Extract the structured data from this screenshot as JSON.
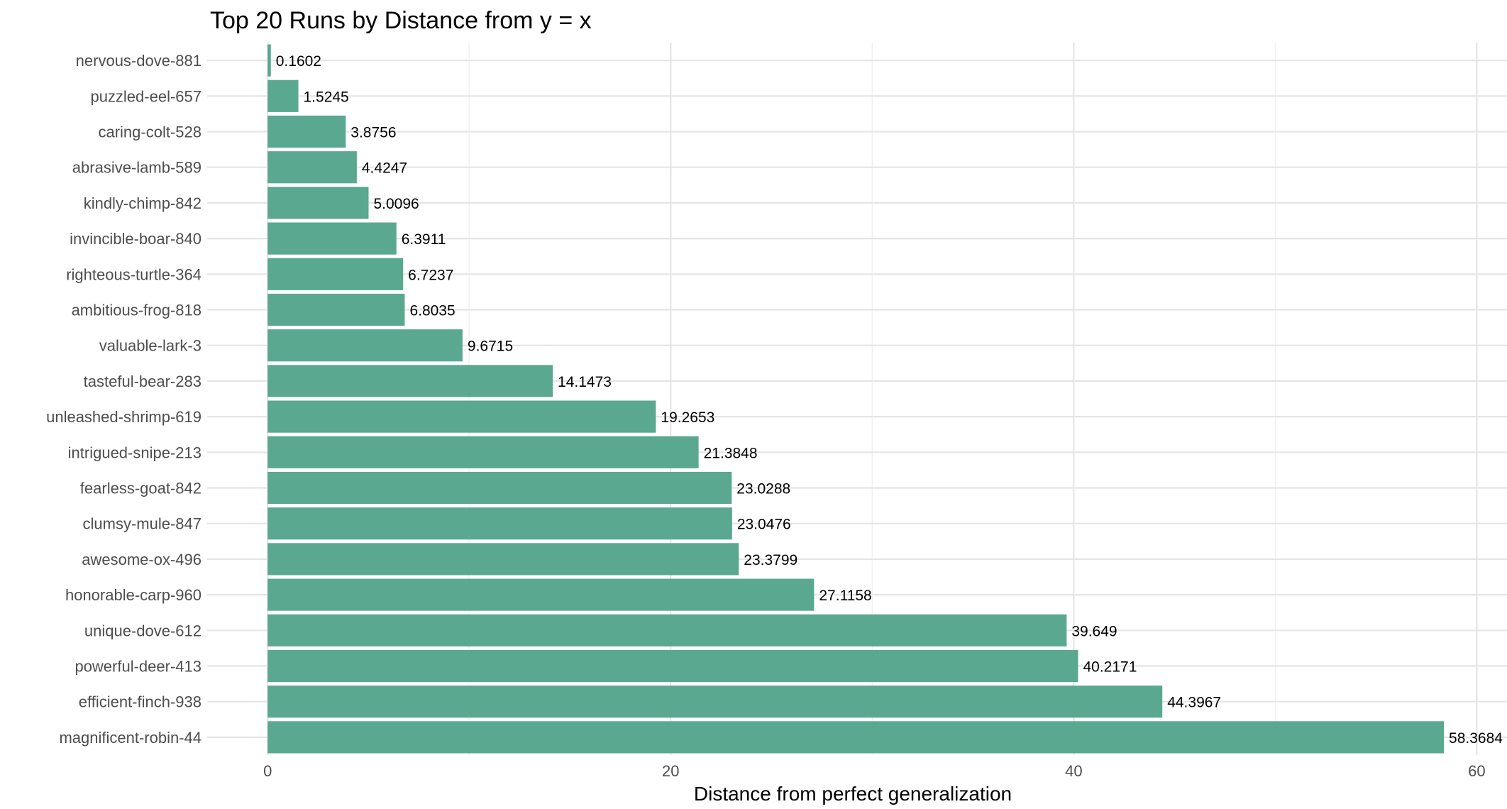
{
  "chart_data": {
    "type": "bar",
    "orientation": "horizontal",
    "title": "Top 20 Runs by Distance from y = x",
    "xlabel": "Distance from perfect generalization",
    "ylabel": "",
    "xlim": [
      -3.0,
      61.5
    ],
    "x_ticks": [
      0,
      20,
      40,
      60
    ],
    "grid": true,
    "bar_color": "#5aa890",
    "categories": [
      "nervous-dove-881",
      "puzzled-eel-657",
      "caring-colt-528",
      "abrasive-lamb-589",
      "kindly-chimp-842",
      "invincible-boar-840",
      "righteous-turtle-364",
      "ambitious-frog-818",
      "valuable-lark-3",
      "tasteful-bear-283",
      "unleashed-shrimp-619",
      "intrigued-snipe-213",
      "fearless-goat-842",
      "clumsy-mule-847",
      "awesome-ox-496",
      "honorable-carp-960",
      "unique-dove-612",
      "powerful-deer-413",
      "efficient-finch-938",
      "magnificent-robin-44"
    ],
    "values": [
      0.1602,
      1.5245,
      3.8756,
      4.4247,
      5.0096,
      6.3911,
      6.7237,
      6.8035,
      9.6715,
      14.1473,
      19.2653,
      21.3848,
      23.0288,
      23.0476,
      23.3799,
      27.1158,
      39.649,
      40.2171,
      44.3967,
      58.3684
    ],
    "value_labels": [
      "0.1602",
      "1.5245",
      "3.8756",
      "4.4247",
      "5.0096",
      "6.3911",
      "6.7237",
      "6.8035",
      "9.6715",
      "14.1473",
      "19.2653",
      "21.3848",
      "23.0288",
      "23.0476",
      "23.3799",
      "27.1158",
      "39.649",
      "40.2171",
      "44.3967",
      "58.3684"
    ]
  }
}
